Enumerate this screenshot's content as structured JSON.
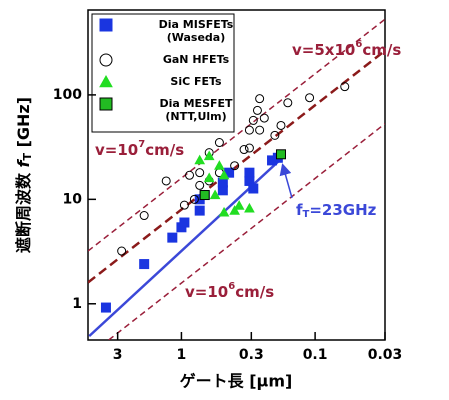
{
  "chart_data": {
    "type": "scatter",
    "xscale": "log",
    "yscale": "log",
    "xlim": [
      5,
      0.03
    ],
    "ylim": [
      0.45,
      650
    ],
    "xticks": [
      3,
      1,
      0.3,
      0.1,
      0.03
    ],
    "yticks": [
      1,
      10,
      100
    ],
    "xlabel": "ゲート長 [µm]",
    "ylabel": {
      "main": "遮断周波数",
      "var": "f",
      "sub": "T",
      "unit": "[GHz]"
    },
    "series": [
      {
        "name": "Dia MISFETs",
        "note": "(Waseda)",
        "marker": "square",
        "color": "#1a35e0",
        "edge": "#1a35e0",
        "x": [
          3.67,
          1.9,
          1.17,
          1,
          0.95,
          0.73,
          0.73,
          0.67,
          0.49,
          0.49,
          0.44,
          0.31,
          0.31,
          0.29,
          0.21,
          0.19
        ],
        "y": [
          0.92,
          2.4,
          4.3,
          5.4,
          6,
          7.8,
          10,
          11,
          12.2,
          14.5,
          18,
          15,
          18,
          12.7,
          23.6,
          25
        ]
      },
      {
        "name": "GaN HFETs",
        "marker": "circle",
        "color": "none",
        "edge": "#000000",
        "x": [
          2.8,
          1.9,
          1.3,
          0.95,
          0.8,
          0.73,
          0.62,
          0.52,
          0.4,
          0.34,
          0.31,
          0.29,
          0.27,
          0.26,
          0.24,
          0.26,
          0.2,
          0.18,
          0.16,
          0.11,
          0.06,
          0.31,
          0.52,
          0.62,
          0.73,
          0.87
        ],
        "y": [
          3.2,
          7,
          15,
          8.8,
          10,
          13.6,
          15,
          18,
          21,
          30,
          46,
          57,
          71,
          92,
          60,
          46,
          41,
          51,
          84,
          94,
          120,
          31,
          35,
          28,
          18,
          17
        ]
      },
      {
        "name": "SiC FETs",
        "marker": "triangle",
        "color": "#22dd22",
        "edge": "#22dd22",
        "x": [
          0.73,
          0.62,
          0.52,
          0.48,
          0.48,
          0.4,
          0.37,
          0.31,
          0.56,
          0.62
        ],
        "y": [
          23.7,
          26,
          21,
          17,
          7.5,
          7.8,
          8.7,
          8.2,
          11,
          16
        ]
      },
      {
        "name": "Dia MESFET",
        "note": "(NTT,Ulm)",
        "marker": "square",
        "color": "#22bb22",
        "edge": "#000000",
        "x": [
          0.67,
          0.18
        ],
        "y": [
          11,
          27
        ]
      }
    ],
    "lines": [
      {
        "color": "#9a1f3a",
        "width": 1.5,
        "dash": "6 4",
        "x": [
          5,
          0.03
        ],
        "y": [
          3.2,
          530
        ],
        "label": {
          "prefix": "v=10",
          "sup": "7",
          "suffix": "cm/s"
        }
      },
      {
        "color": "#8b1a1a",
        "width": 2.5,
        "dash": "9 5",
        "x": [
          5,
          0.03
        ],
        "y": [
          1.6,
          265
        ],
        "label": {
          "prefix": "v=5x10",
          "sup": "6",
          "suffix": "cm/s"
        }
      },
      {
        "color": "#9a1f3a",
        "width": 1.5,
        "dash": "6 4",
        "x": [
          3.5,
          0.03
        ],
        "y": [
          0.45,
          53
        ],
        "label": {
          "prefix": "v=10",
          "sup": "6",
          "suffix": "cm/s"
        }
      }
    ],
    "fit": {
      "color": "#3b48d8",
      "x": [
        4.9,
        0.17
      ],
      "y": [
        0.49,
        26
      ]
    },
    "annotation": {
      "var": "f",
      "sub": "T",
      "text": "=23GHz"
    }
  }
}
